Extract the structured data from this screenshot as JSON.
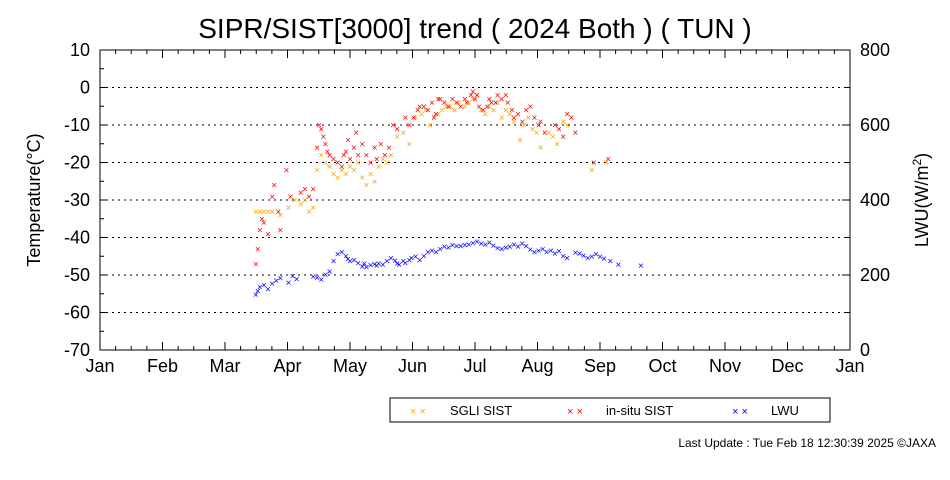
{
  "title": "SIPR/SIST[3000] trend ( 2024 Both ) ( TUN )",
  "footer": "Last Update : Tue Feb 18 12:30:39 2025  ©JAXA",
  "chart_data": {
    "type": "scatter",
    "title": "SIPR/SIST[3000] trend ( 2024 Both ) ( TUN )",
    "xlabel": "",
    "ylabel_left": "Temperature(°C)",
    "ylabel_right_main": "LWU(W/m",
    "ylabel_right_sup": "2",
    "ylabel_right_tail": ")",
    "x_ticks": [
      "Jan",
      "Feb",
      "Mar",
      "Apr",
      "May",
      "Jun",
      "Jul",
      "Aug",
      "Sep",
      "Oct",
      "Nov",
      "Dec",
      "Jan"
    ],
    "xlim_days": [
      0,
      366
    ],
    "ylim_left": [
      -70,
      10
    ],
    "left_ticks": [
      10,
      0,
      -10,
      -20,
      -30,
      -40,
      -50,
      -60,
      -70
    ],
    "left_tick_labels": [
      "10",
      "0",
      "-10",
      "-20",
      "-30",
      "-40",
      "-50",
      "-60",
      "-70"
    ],
    "ylim_right": [
      0,
      800
    ],
    "right_ticks": [
      0,
      200,
      400,
      600,
      800
    ],
    "right_tick_labels": [
      "0",
      "200",
      "400",
      "600",
      "800"
    ],
    "grid": "horizontal dotted",
    "colors": {
      "sgli": "#ffa500",
      "insitu": "#ff0000",
      "lwu": "#0000ff",
      "grid": "#000000"
    },
    "legend": {
      "placement": "bottom-center",
      "entries": [
        {
          "label": "SGLI SIST",
          "color": "#ffa500"
        },
        {
          "label": "in-situ SIST",
          "color": "#ff0000"
        },
        {
          "label": "LWU",
          "color": "#0000ff"
        }
      ]
    },
    "series": [
      {
        "name": "SGLI SIST",
        "axis": "left",
        "color": "#ffa500",
        "points": [
          [
            76,
            -33
          ],
          [
            78,
            -33
          ],
          [
            80,
            -33
          ],
          [
            82,
            -33
          ],
          [
            84,
            -33
          ],
          [
            88,
            -34
          ],
          [
            92,
            -32
          ],
          [
            95,
            -30
          ],
          [
            98,
            -31
          ],
          [
            100,
            -30
          ],
          [
            102,
            -33
          ],
          [
            104,
            -32
          ],
          [
            106,
            -22
          ],
          [
            108,
            -18
          ],
          [
            110,
            -20
          ],
          [
            112,
            -21
          ],
          [
            114,
            -23
          ],
          [
            116,
            -24
          ],
          [
            118,
            -22
          ],
          [
            120,
            -23
          ],
          [
            122,
            -21
          ],
          [
            124,
            -22
          ],
          [
            126,
            -20
          ],
          [
            128,
            -24
          ],
          [
            130,
            -26
          ],
          [
            132,
            -23
          ],
          [
            134,
            -25
          ],
          [
            136,
            -21
          ],
          [
            138,
            -19
          ],
          [
            140,
            -20
          ],
          [
            142,
            -18
          ],
          [
            145,
            -13
          ],
          [
            148,
            -12
          ],
          [
            151,
            -15
          ],
          [
            154,
            -8
          ],
          [
            157,
            -7
          ],
          [
            159,
            -6
          ],
          [
            161,
            -10
          ],
          [
            163,
            -8
          ],
          [
            165,
            -7
          ],
          [
            167,
            -6
          ],
          [
            169,
            -5
          ],
          [
            171,
            -5
          ],
          [
            173,
            -6
          ],
          [
            175,
            -4
          ],
          [
            178,
            -5
          ],
          [
            180,
            -4
          ],
          [
            182,
            -3
          ],
          [
            184,
            -2
          ],
          [
            186,
            -6
          ],
          [
            188,
            -7
          ],
          [
            190,
            -5
          ],
          [
            192,
            -6
          ],
          [
            194,
            -4
          ],
          [
            196,
            -8
          ],
          [
            198,
            -6
          ],
          [
            200,
            -7
          ],
          [
            202,
            -9
          ],
          [
            205,
            -14
          ],
          [
            207,
            -10
          ],
          [
            209,
            -8
          ],
          [
            211,
            -11
          ],
          [
            213,
            -12
          ],
          [
            215,
            -16
          ],
          [
            219,
            -12
          ],
          [
            221,
            -13
          ],
          [
            223,
            -15
          ],
          [
            226,
            -9
          ],
          [
            228,
            -10
          ],
          [
            240,
            -22
          ],
          [
            247,
            -20
          ]
        ]
      },
      {
        "name": "in-situ SIST",
        "axis": "left",
        "color": "#ff0000",
        "points": [
          [
            76,
            -47
          ],
          [
            77,
            -43
          ],
          [
            78,
            -38
          ],
          [
            79,
            -35
          ],
          [
            80,
            -36
          ],
          [
            82,
            -39
          ],
          [
            84,
            -29
          ],
          [
            85,
            -26
          ],
          [
            87,
            -33
          ],
          [
            88,
            -38
          ],
          [
            91,
            -22
          ],
          [
            93,
            -29
          ],
          [
            98,
            -28
          ],
          [
            100,
            -27
          ],
          [
            102,
            -29
          ],
          [
            104,
            -27
          ],
          [
            106,
            -16
          ],
          [
            107,
            -10
          ],
          [
            108,
            -11
          ],
          [
            109,
            -13
          ],
          [
            110,
            -15
          ],
          [
            111,
            -17
          ],
          [
            112,
            -18
          ],
          [
            114,
            -19
          ],
          [
            116,
            -20
          ],
          [
            118,
            -21
          ],
          [
            119,
            -18
          ],
          [
            120,
            -17
          ],
          [
            121,
            -14
          ],
          [
            122,
            -19
          ],
          [
            124,
            -16
          ],
          [
            125,
            -12
          ],
          [
            126,
            -18
          ],
          [
            128,
            -15
          ],
          [
            130,
            -18
          ],
          [
            132,
            -20
          ],
          [
            134,
            -16
          ],
          [
            135,
            -19
          ],
          [
            137,
            -15
          ],
          [
            139,
            -18
          ],
          [
            141,
            -16
          ],
          [
            143,
            -10
          ],
          [
            145,
            -11
          ],
          [
            149,
            -8
          ],
          [
            151,
            -10
          ],
          [
            153,
            -8
          ],
          [
            155,
            -6
          ],
          [
            156,
            -5
          ],
          [
            158,
            -5
          ],
          [
            160,
            -6
          ],
          [
            162,
            -4
          ],
          [
            163,
            -8
          ],
          [
            164,
            -7
          ],
          [
            165,
            -3
          ],
          [
            166,
            -3
          ],
          [
            168,
            -4
          ],
          [
            170,
            -5
          ],
          [
            172,
            -3
          ],
          [
            174,
            -4
          ],
          [
            176,
            -5
          ],
          [
            178,
            -3
          ],
          [
            179,
            -4
          ],
          [
            181,
            -2
          ],
          [
            182,
            -1
          ],
          [
            183,
            -3
          ],
          [
            184,
            -2
          ],
          [
            185,
            -5
          ],
          [
            187,
            -6
          ],
          [
            189,
            -5
          ],
          [
            190,
            -3
          ],
          [
            191,
            -4
          ],
          [
            193,
            -4
          ],
          [
            194,
            -2
          ],
          [
            196,
            -3
          ],
          [
            198,
            -2
          ],
          [
            199,
            -4
          ],
          [
            201,
            -6
          ],
          [
            202,
            -8
          ],
          [
            204,
            -7
          ],
          [
            206,
            -9
          ],
          [
            208,
            -6
          ],
          [
            210,
            -5
          ],
          [
            212,
            -8
          ],
          [
            214,
            -10
          ],
          [
            215,
            -9
          ],
          [
            217,
            -12
          ],
          [
            222,
            -10
          ],
          [
            224,
            -11
          ],
          [
            226,
            -13
          ],
          [
            228,
            -7
          ],
          [
            230,
            -8
          ],
          [
            232,
            -12
          ],
          [
            241,
            -20
          ],
          [
            248,
            -19
          ]
        ]
      },
      {
        "name": "LWU",
        "axis": "right",
        "color": "#0000ff",
        "points": [
          [
            76,
            148
          ],
          [
            77,
            158
          ],
          [
            78,
            168
          ],
          [
            80,
            173
          ],
          [
            82,
            163
          ],
          [
            84,
            178
          ],
          [
            86,
            186
          ],
          [
            88,
            192
          ],
          [
            92,
            180
          ],
          [
            94,
            198
          ],
          [
            96,
            190
          ],
          [
            104,
            196
          ],
          [
            106,
            193
          ],
          [
            108,
            188
          ],
          [
            110,
            202
          ],
          [
            112,
            210
          ],
          [
            114,
            238
          ],
          [
            116,
            256
          ],
          [
            118,
            262
          ],
          [
            120,
            251
          ],
          [
            121,
            243
          ],
          [
            122,
            238
          ],
          [
            124,
            240
          ],
          [
            126,
            232
          ],
          [
            128,
            223
          ],
          [
            129,
            231
          ],
          [
            130,
            222
          ],
          [
            132,
            227
          ],
          [
            134,
            230
          ],
          [
            135,
            225
          ],
          [
            136,
            231
          ],
          [
            138,
            228
          ],
          [
            140,
            238
          ],
          [
            142,
            245
          ],
          [
            144,
            239
          ],
          [
            145,
            231
          ],
          [
            146,
            228
          ],
          [
            148,
            237
          ],
          [
            149,
            232
          ],
          [
            151,
            240
          ],
          [
            152,
            246
          ],
          [
            154,
            250
          ],
          [
            156,
            240
          ],
          [
            158,
            251
          ],
          [
            160,
            262
          ],
          [
            162,
            266
          ],
          [
            164,
            262
          ],
          [
            166,
            270
          ],
          [
            168,
            276
          ],
          [
            170,
            273
          ],
          [
            172,
            280
          ],
          [
            174,
            278
          ],
          [
            176,
            278
          ],
          [
            178,
            280
          ],
          [
            180,
            282
          ],
          [
            182,
            286
          ],
          [
            184,
            289
          ],
          [
            186,
            284
          ],
          [
            188,
            282
          ],
          [
            190,
            287
          ],
          [
            192,
            279
          ],
          [
            194,
            272
          ],
          [
            196,
            270
          ],
          [
            198,
            273
          ],
          [
            200,
            276
          ],
          [
            202,
            281
          ],
          [
            204,
            276
          ],
          [
            206,
            284
          ],
          [
            208,
            277
          ],
          [
            210,
            268
          ],
          [
            212,
            262
          ],
          [
            214,
            265
          ],
          [
            216,
            270
          ],
          [
            218,
            262
          ],
          [
            220,
            266
          ],
          [
            222,
            258
          ],
          [
            224,
            264
          ],
          [
            226,
            251
          ],
          [
            228,
            245
          ],
          [
            232,
            260
          ],
          [
            234,
            258
          ],
          [
            236,
            252
          ],
          [
            238,
            245
          ],
          [
            240,
            250
          ],
          [
            242,
            256
          ],
          [
            244,
            250
          ],
          [
            246,
            244
          ],
          [
            249,
            238
          ],
          [
            253,
            228
          ],
          [
            264,
            226
          ]
        ]
      }
    ]
  }
}
